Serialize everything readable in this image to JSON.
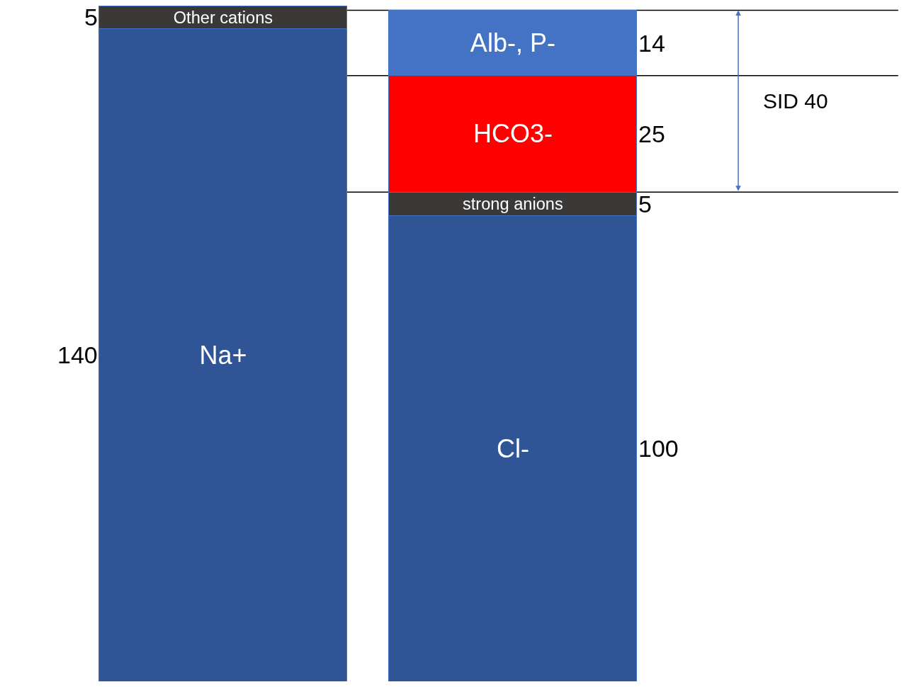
{
  "chart_data": {
    "type": "bar",
    "stacked": true,
    "categories": [
      null,
      null
    ],
    "series": [
      {
        "name": "Na+",
        "color": "#2f5597",
        "values": [
          140,
          null
        ],
        "value_labels": [
          "140",
          null
        ]
      },
      {
        "name": "Other cations",
        "color": "#3b3838",
        "values": [
          5,
          null
        ],
        "value_labels": [
          "5",
          null
        ]
      },
      {
        "name": "Cl-",
        "color": "#2f5597",
        "values": [
          null,
          100
        ],
        "value_labels": [
          null,
          "100"
        ]
      },
      {
        "name": "strong anions",
        "color": "#3b3838",
        "values": [
          null,
          5
        ],
        "value_labels": [
          null,
          "5"
        ]
      },
      {
        "name": "HCO3-",
        "color": "#ff0000",
        "values": [
          null,
          25
        ],
        "value_labels": [
          null,
          "25"
        ]
      },
      {
        "name": "Alb-, P-",
        "color": "#4472c4",
        "values": [
          null,
          14
        ],
        "value_labels": [
          null,
          "14"
        ]
      }
    ],
    "ref_lines": [
      {
        "axis": "y",
        "value": 144,
        "color": "#000000"
      },
      {
        "axis": "y",
        "value": 130,
        "color": "#000000"
      },
      {
        "axis": "y",
        "value": 105,
        "color": "#000000"
      }
    ],
    "annotations": [
      "SID 40"
    ]
  }
}
